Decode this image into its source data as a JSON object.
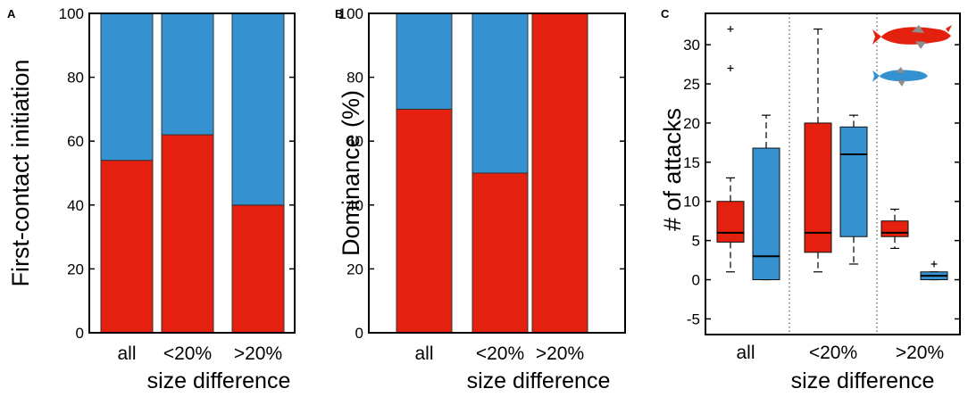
{
  "colors": {
    "red": "#e4200f",
    "blue": "#3591d0",
    "grey": "#8e8e8e"
  },
  "chart_data": [
    {
      "id": "A",
      "type": "bar",
      "stacked": true,
      "panel_label": "A",
      "title": "",
      "xlabel": "size difference",
      "ylabel": "First-contact initiation",
      "categories": [
        "all",
        "<20%",
        ">20%"
      ],
      "ylim": [
        0,
        100
      ],
      "yticks": [
        0,
        20,
        40,
        60,
        80,
        100
      ],
      "series": [
        {
          "name": "larger fish",
          "color": "#e4200f",
          "values": [
            54,
            62,
            40
          ]
        },
        {
          "name": "smaller fish",
          "color": "#3591d0",
          "values": [
            46,
            38,
            60
          ]
        }
      ]
    },
    {
      "id": "B",
      "type": "bar",
      "stacked": true,
      "panel_label": "B",
      "title": "",
      "xlabel": "size difference",
      "ylabel": "Dominance (%)",
      "categories": [
        "all",
        "<20%",
        ">20%"
      ],
      "ylim": [
        0,
        100
      ],
      "yticks": [
        0,
        20,
        40,
        60,
        80,
        100
      ],
      "series": [
        {
          "name": "larger fish",
          "color": "#e4200f",
          "values": [
            70,
            50,
            100
          ]
        },
        {
          "name": "smaller fish",
          "color": "#3591d0",
          "values": [
            30,
            50,
            0
          ]
        }
      ]
    },
    {
      "id": "C",
      "type": "box",
      "panel_label": "C",
      "title": "",
      "xlabel": "size difference",
      "ylabel": "# of attacks",
      "categories": [
        "all",
        "<20%",
        ">20%"
      ],
      "ylim": [
        -7,
        34
      ],
      "yticks": [
        -5,
        0,
        5,
        10,
        15,
        20,
        25,
        30
      ],
      "legend": [
        "larger fish (red)",
        "smaller fish (blue)"
      ],
      "legend_position": "top-right",
      "boxes": [
        {
          "category": "all",
          "series": "larger fish",
          "color": "#e4200f",
          "whisker_low": 1,
          "q1": 4.8,
          "median": 6,
          "q3": 10,
          "whisker_high": 13,
          "outliers": [
            27,
            32
          ]
        },
        {
          "category": "all",
          "series": "smaller fish",
          "color": "#3591d0",
          "whisker_low": 0,
          "q1": 0,
          "median": 3,
          "q3": 16.8,
          "whisker_high": 21,
          "outliers": []
        },
        {
          "category": "<20%",
          "series": "larger fish",
          "color": "#e4200f",
          "whisker_low": 1,
          "q1": 3.5,
          "median": 6,
          "q3": 20,
          "whisker_high": 32,
          "outliers": []
        },
        {
          "category": "<20%",
          "series": "smaller fish",
          "color": "#3591d0",
          "whisker_low": 2,
          "q1": 5.5,
          "median": 16,
          "q3": 19.5,
          "whisker_high": 21,
          "outliers": []
        },
        {
          "category": ">20%",
          "series": "larger fish",
          "color": "#e4200f",
          "whisker_low": 4,
          "q1": 5.5,
          "median": 6,
          "q3": 7.5,
          "whisker_high": 9,
          "outliers": []
        },
        {
          "category": ">20%",
          "series": "smaller fish",
          "color": "#3591d0",
          "whisker_low": 0,
          "q1": 0,
          "median": 0.5,
          "q3": 1,
          "whisker_high": 1,
          "outliers": [
            2
          ]
        }
      ]
    }
  ]
}
